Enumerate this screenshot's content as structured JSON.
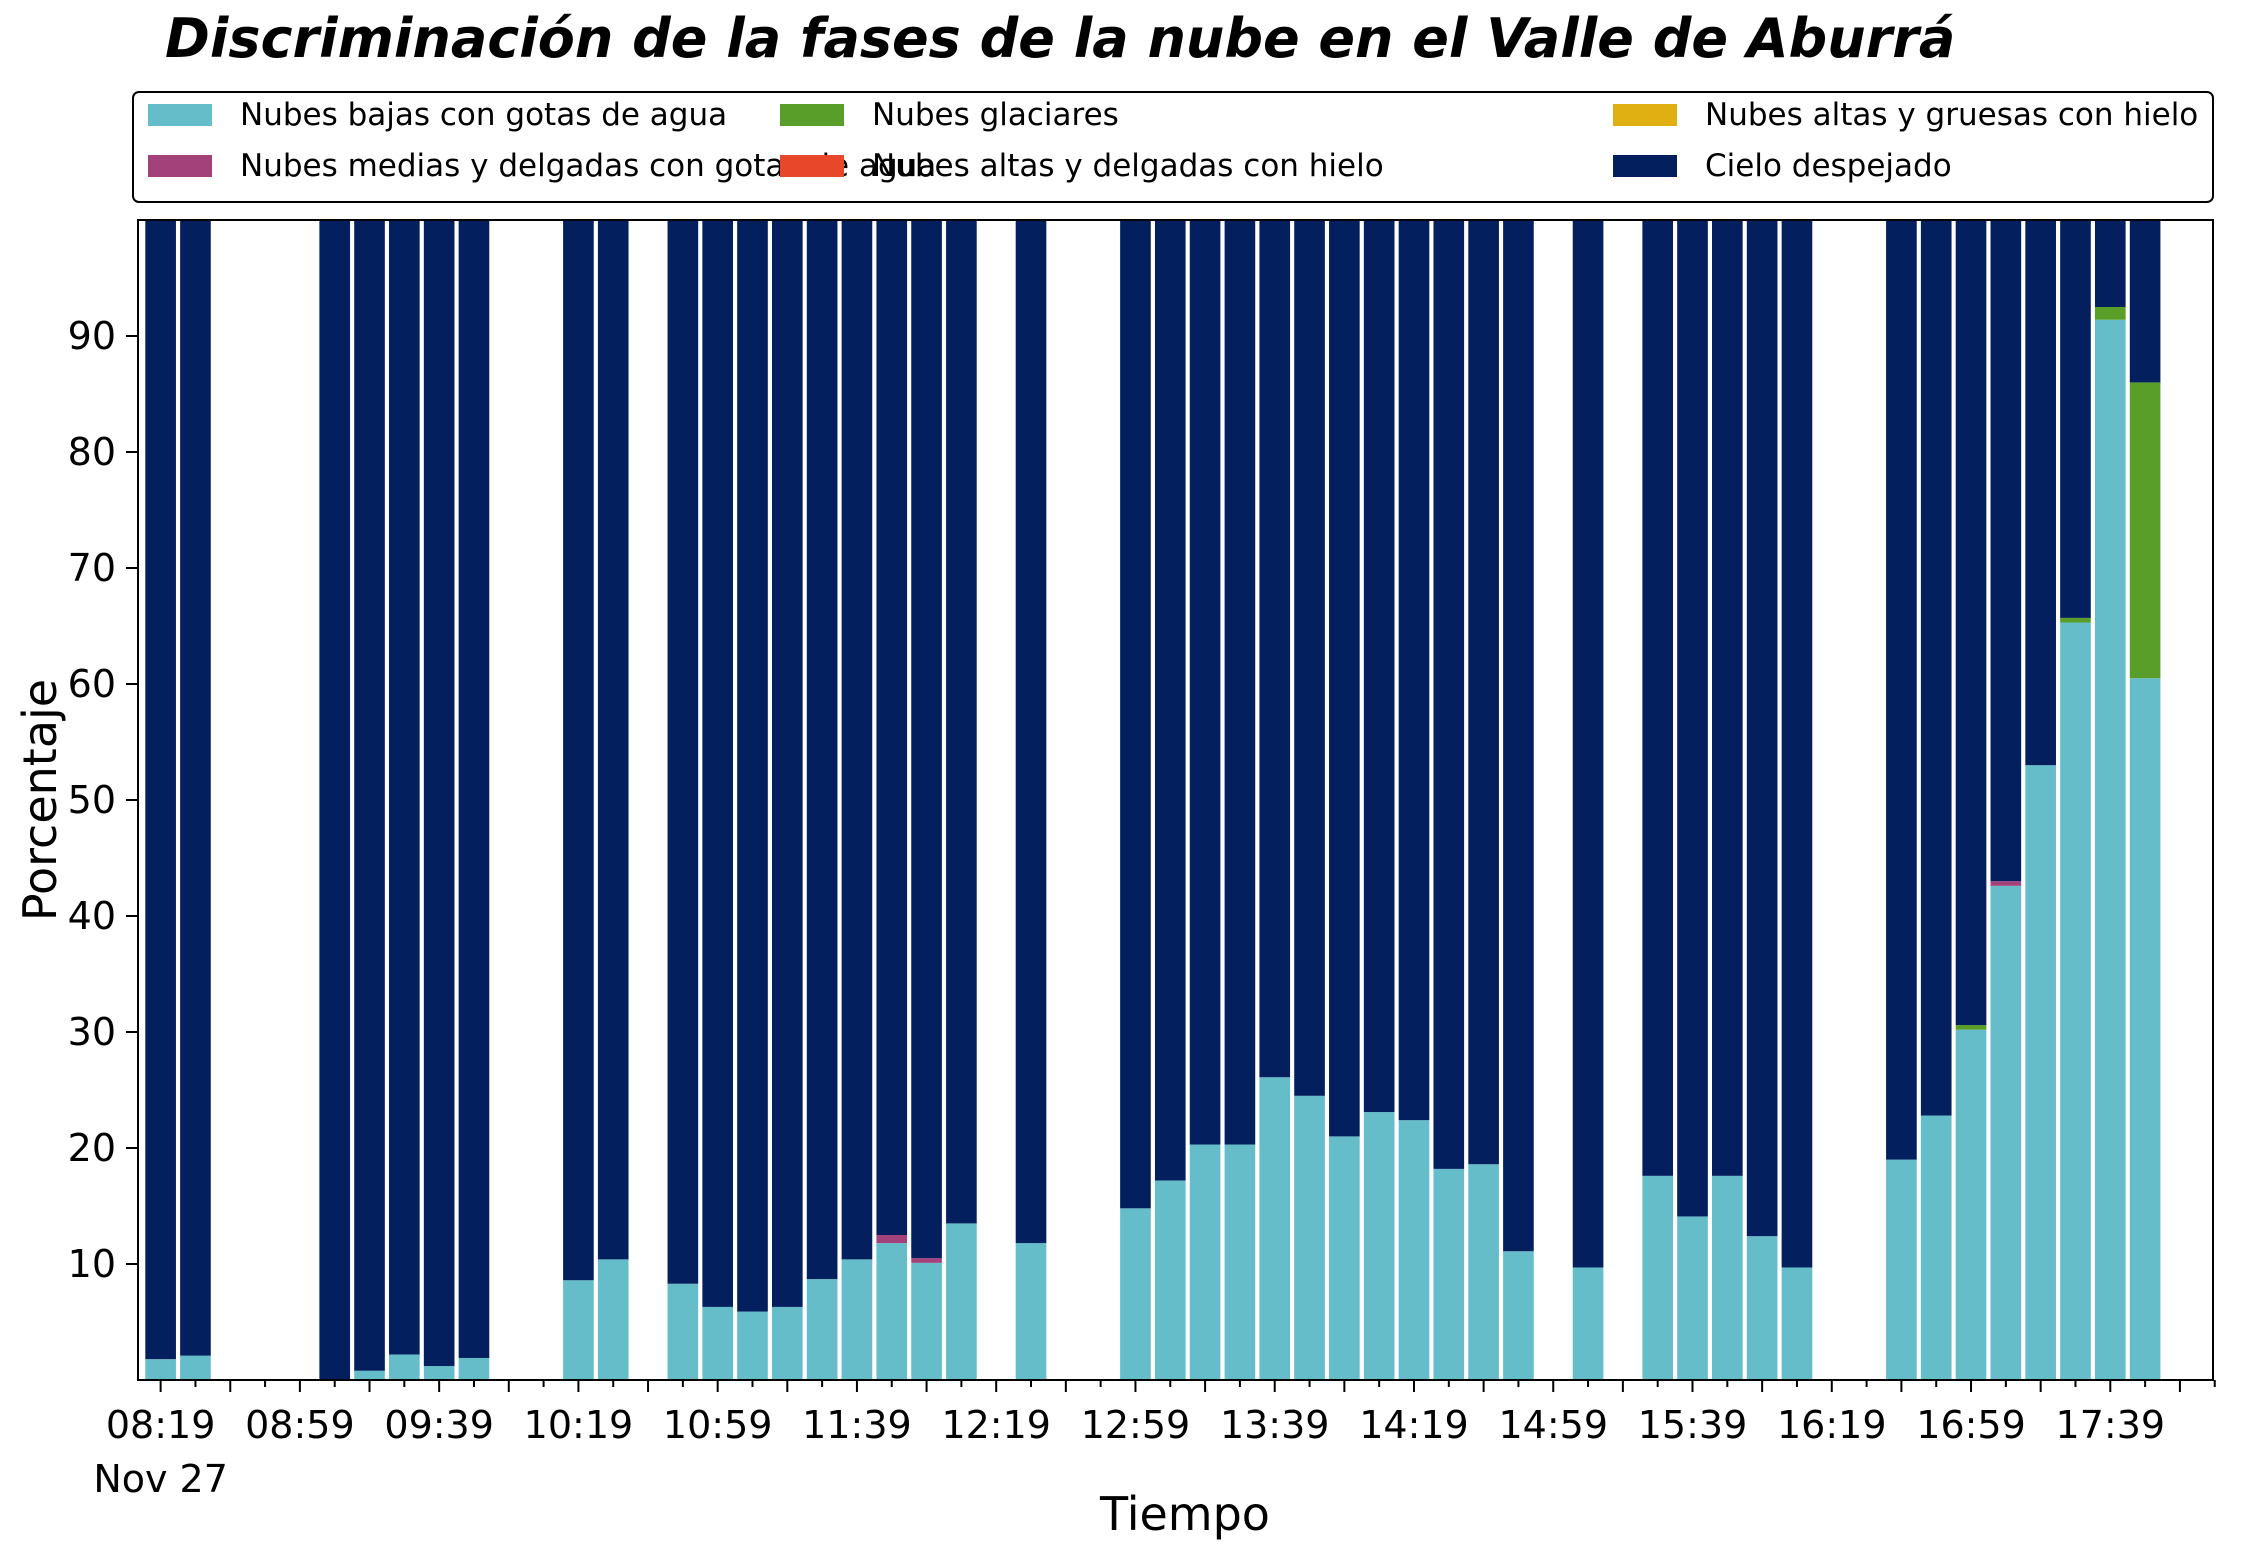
{
  "chart_data": {
    "type": "bar",
    "stacked": true,
    "title": "Discriminación de la fases de la nube en el Valle de Aburrá",
    "xlabel": "Tiempo",
    "ylabel": "Porcentaje",
    "ylim": [
      0,
      100
    ],
    "yticks": [
      10,
      20,
      30,
      40,
      50,
      60,
      70,
      80,
      90
    ],
    "grid": false,
    "legend_position": "top",
    "x_start": "08:19",
    "x_step_minutes": 10,
    "x_slots": 60,
    "x_end_slot": 59.6,
    "xticks": [
      {
        "slot": 0,
        "label": "08:19",
        "sublabel": "Nov 27"
      },
      {
        "slot": 4,
        "label": "08:59"
      },
      {
        "slot": 8,
        "label": "09:39"
      },
      {
        "slot": 12,
        "label": "10:19"
      },
      {
        "slot": 16,
        "label": "10:59"
      },
      {
        "slot": 20,
        "label": "11:39"
      },
      {
        "slot": 24,
        "label": "12:19"
      },
      {
        "slot": 28,
        "label": "12:59"
      },
      {
        "slot": 32,
        "label": "13:39"
      },
      {
        "slot": 36,
        "label": "14:19"
      },
      {
        "slot": 40,
        "label": "14:59"
      },
      {
        "slot": 44,
        "label": "15:39"
      },
      {
        "slot": 48,
        "label": "16:19"
      },
      {
        "slot": 52,
        "label": "16:59"
      },
      {
        "slot": 56,
        "label": "17:39"
      }
    ],
    "series": [
      {
        "name": "Nubes bajas con gotas de agua",
        "color": "#65bdca"
      },
      {
        "name": "Nubes glaciares",
        "color": "#5a9e2a"
      },
      {
        "name": "Nubes altas y gruesas con hielo",
        "color": "#e0b012"
      },
      {
        "name": "Nubes medias y delgadas con gotas de agua",
        "color": "#a3427a"
      },
      {
        "name": "Nubes altas y delgadas con hielo",
        "color": "#e8472a"
      },
      {
        "name": "Cielo despejado",
        "color": "#031f5e"
      }
    ],
    "bars": [
      {
        "time": "08:19",
        "low": 1.8,
        "glaciar": 0,
        "thick_ice": 0,
        "mid_water": 0,
        "thin_ice": 0,
        "clear": 98.2
      },
      {
        "time": "08:29",
        "low": 2.1,
        "glaciar": 0,
        "thick_ice": 0,
        "mid_water": 0,
        "thin_ice": 0,
        "clear": 97.9
      },
      {
        "time": "09:09",
        "low": 0.0,
        "glaciar": 0,
        "thick_ice": 0,
        "mid_water": 0,
        "thin_ice": 0,
        "clear": 100
      },
      {
        "time": "09:19",
        "low": 0.8,
        "glaciar": 0,
        "thick_ice": 0,
        "mid_water": 0,
        "thin_ice": 0,
        "clear": 99.2
      },
      {
        "time": "09:29",
        "low": 2.2,
        "glaciar": 0,
        "thick_ice": 0,
        "mid_water": 0,
        "thin_ice": 0,
        "clear": 97.8
      },
      {
        "time": "09:39",
        "low": 1.2,
        "glaciar": 0,
        "thick_ice": 0,
        "mid_water": 0,
        "thin_ice": 0,
        "clear": 98.8
      },
      {
        "time": "09:49",
        "low": 1.9,
        "glaciar": 0,
        "thick_ice": 0,
        "mid_water": 0,
        "thin_ice": 0,
        "clear": 98.1
      },
      {
        "time": "10:19",
        "low": 8.6,
        "glaciar": 0,
        "thick_ice": 0,
        "mid_water": 0,
        "thin_ice": 0,
        "clear": 91.4
      },
      {
        "time": "10:29",
        "low": 10.4,
        "glaciar": 0,
        "thick_ice": 0,
        "mid_water": 0,
        "thin_ice": 0,
        "clear": 89.6
      },
      {
        "time": "10:49",
        "low": 8.3,
        "glaciar": 0,
        "thick_ice": 0,
        "mid_water": 0,
        "thin_ice": 0,
        "clear": 91.7
      },
      {
        "time": "10:59",
        "low": 6.3,
        "glaciar": 0,
        "thick_ice": 0,
        "mid_water": 0,
        "thin_ice": 0,
        "clear": 93.7
      },
      {
        "time": "11:09",
        "low": 5.9,
        "glaciar": 0,
        "thick_ice": 0,
        "mid_water": 0,
        "thin_ice": 0,
        "clear": 94.1
      },
      {
        "time": "11:19",
        "low": 6.3,
        "glaciar": 0,
        "thick_ice": 0,
        "mid_water": 0,
        "thin_ice": 0,
        "clear": 93.7
      },
      {
        "time": "11:29",
        "low": 8.7,
        "glaciar": 0,
        "thick_ice": 0,
        "mid_water": 0,
        "thin_ice": 0,
        "clear": 91.3
      },
      {
        "time": "11:39",
        "low": 10.4,
        "glaciar": 0,
        "thick_ice": 0,
        "mid_water": 0,
        "thin_ice": 0,
        "clear": 89.6
      },
      {
        "time": "11:49",
        "low": 11.8,
        "glaciar": 0,
        "thick_ice": 0,
        "mid_water": 0.7,
        "thin_ice": 0,
        "clear": 87.5
      },
      {
        "time": "11:59",
        "low": 10.1,
        "glaciar": 0,
        "thick_ice": 0,
        "mid_water": 0.4,
        "thin_ice": 0,
        "clear": 89.5
      },
      {
        "time": "12:09",
        "low": 13.5,
        "glaciar": 0,
        "thick_ice": 0,
        "mid_water": 0,
        "thin_ice": 0,
        "clear": 86.5
      },
      {
        "time": "12:29",
        "low": 11.8,
        "glaciar": 0,
        "thick_ice": 0,
        "mid_water": 0,
        "thin_ice": 0,
        "clear": 88.2
      },
      {
        "time": "12:59",
        "low": 14.8,
        "glaciar": 0,
        "thick_ice": 0,
        "mid_water": 0,
        "thin_ice": 0,
        "clear": 85.2
      },
      {
        "time": "13:09",
        "low": 17.2,
        "glaciar": 0,
        "thick_ice": 0,
        "mid_water": 0,
        "thin_ice": 0,
        "clear": 82.8
      },
      {
        "time": "13:19",
        "low": 20.3,
        "glaciar": 0,
        "thick_ice": 0,
        "mid_water": 0,
        "thin_ice": 0,
        "clear": 79.7
      },
      {
        "time": "13:29",
        "low": 20.3,
        "glaciar": 0,
        "thick_ice": 0,
        "mid_water": 0,
        "thin_ice": 0,
        "clear": 79.7
      },
      {
        "time": "13:39",
        "low": 26.1,
        "glaciar": 0,
        "thick_ice": 0,
        "mid_water": 0,
        "thin_ice": 0,
        "clear": 73.9
      },
      {
        "time": "13:49",
        "low": 24.5,
        "glaciar": 0,
        "thick_ice": 0,
        "mid_water": 0,
        "thin_ice": 0,
        "clear": 75.5
      },
      {
        "time": "13:59",
        "low": 21.0,
        "glaciar": 0,
        "thick_ice": 0,
        "mid_water": 0,
        "thin_ice": 0,
        "clear": 79.0
      },
      {
        "time": "14:09",
        "low": 23.1,
        "glaciar": 0,
        "thick_ice": 0,
        "mid_water": 0,
        "thin_ice": 0,
        "clear": 76.9
      },
      {
        "time": "14:19",
        "low": 22.4,
        "glaciar": 0,
        "thick_ice": 0,
        "mid_water": 0,
        "thin_ice": 0,
        "clear": 77.6
      },
      {
        "time": "14:29",
        "low": 18.2,
        "glaciar": 0,
        "thick_ice": 0,
        "mid_water": 0,
        "thin_ice": 0,
        "clear": 81.8
      },
      {
        "time": "14:39",
        "low": 18.6,
        "glaciar": 0,
        "thick_ice": 0,
        "mid_water": 0,
        "thin_ice": 0,
        "clear": 81.4
      },
      {
        "time": "14:49",
        "low": 11.1,
        "glaciar": 0,
        "thick_ice": 0,
        "mid_water": 0,
        "thin_ice": 0,
        "clear": 88.9
      },
      {
        "time": "15:09",
        "low": 9.7,
        "glaciar": 0,
        "thick_ice": 0,
        "mid_water": 0,
        "thin_ice": 0,
        "clear": 90.3
      },
      {
        "time": "15:29",
        "low": 17.6,
        "glaciar": 0,
        "thick_ice": 0,
        "mid_water": 0,
        "thin_ice": 0,
        "clear": 82.4
      },
      {
        "time": "15:39",
        "low": 14.1,
        "glaciar": 0,
        "thick_ice": 0,
        "mid_water": 0,
        "thin_ice": 0,
        "clear": 85.9
      },
      {
        "time": "15:49",
        "low": 17.6,
        "glaciar": 0,
        "thick_ice": 0,
        "mid_water": 0,
        "thin_ice": 0,
        "clear": 82.4
      },
      {
        "time": "15:59",
        "low": 12.4,
        "glaciar": 0,
        "thick_ice": 0,
        "mid_water": 0,
        "thin_ice": 0,
        "clear": 87.6
      },
      {
        "time": "16:09",
        "low": 9.7,
        "glaciar": 0,
        "thick_ice": 0,
        "mid_water": 0,
        "thin_ice": 0,
        "clear": 90.3
      },
      {
        "time": "16:39",
        "low": 19.0,
        "glaciar": 0,
        "thick_ice": 0,
        "mid_water": 0,
        "thin_ice": 0,
        "clear": 81.0
      },
      {
        "time": "16:49",
        "low": 22.8,
        "glaciar": 0,
        "thick_ice": 0,
        "mid_water": 0,
        "thin_ice": 0,
        "clear": 77.2
      },
      {
        "time": "16:59",
        "low": 30.2,
        "glaciar": 0.4,
        "thick_ice": 0,
        "mid_water": 0,
        "thin_ice": 0,
        "clear": 69.4
      },
      {
        "time": "17:09",
        "low": 42.6,
        "glaciar": 0,
        "thick_ice": 0,
        "mid_water": 0.4,
        "thin_ice": 0,
        "clear": 57.0
      },
      {
        "time": "17:19",
        "low": 53.0,
        "glaciar": 0,
        "thick_ice": 0,
        "mid_water": 0,
        "thin_ice": 0,
        "clear": 47.0
      },
      {
        "time": "17:29",
        "low": 65.3,
        "glaciar": 0.4,
        "thick_ice": 0,
        "mid_water": 0,
        "thin_ice": 0,
        "clear": 34.3
      },
      {
        "time": "17:39",
        "low": 91.4,
        "glaciar": 1.1,
        "thick_ice": 0,
        "mid_water": 0,
        "thin_ice": 0,
        "clear": 7.5
      },
      {
        "time": "17:49",
        "low": 60.5,
        "glaciar": 25.5,
        "thick_ice": 0,
        "mid_water": 0,
        "thin_ice": 0,
        "clear": 14.0
      }
    ]
  }
}
